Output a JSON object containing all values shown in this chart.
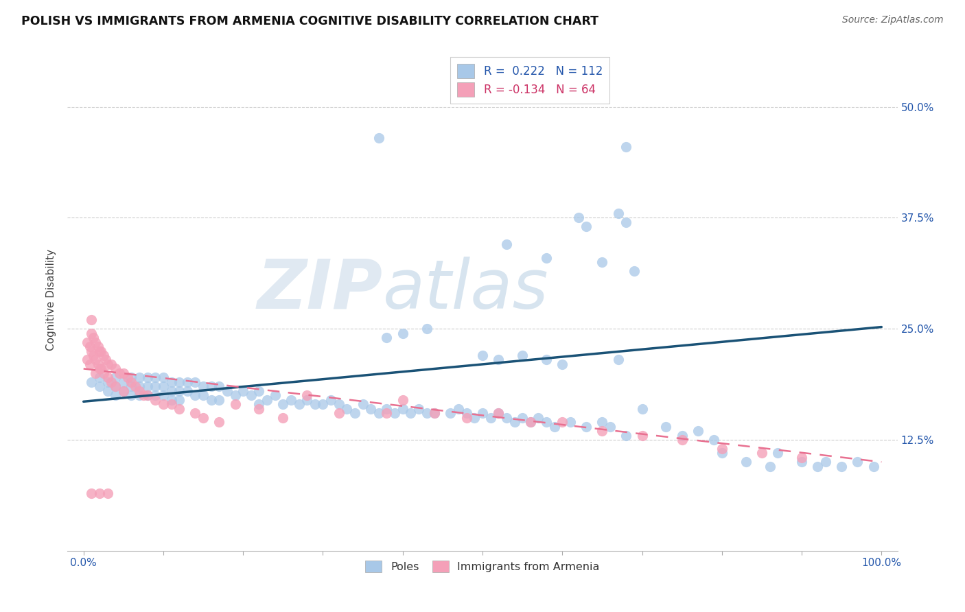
{
  "title": "POLISH VS IMMIGRANTS FROM ARMENIA COGNITIVE DISABILITY CORRELATION CHART",
  "source": "Source: ZipAtlas.com",
  "ylabel": "Cognitive Disability",
  "ytick_labels": [
    "12.5%",
    "25.0%",
    "37.5%",
    "50.0%"
  ],
  "ytick_values": [
    0.125,
    0.25,
    0.375,
    0.5
  ],
  "xlim": [
    -0.02,
    1.02
  ],
  "ylim": [
    0.0,
    0.565
  ],
  "blue_color": "#a8c8e8",
  "pink_color": "#f4a0b8",
  "blue_line_color": "#1a5276",
  "pink_line_color": "#e87090",
  "watermark_zip": "ZIP",
  "watermark_atlas": "atlas",
  "blue_line_x": [
    0.0,
    1.0
  ],
  "blue_line_y": [
    0.168,
    0.252
  ],
  "pink_line_x": [
    0.0,
    1.0
  ],
  "pink_line_y": [
    0.205,
    0.1
  ],
  "poles_x": [
    0.01,
    0.02,
    0.02,
    0.03,
    0.03,
    0.04,
    0.04,
    0.04,
    0.05,
    0.05,
    0.06,
    0.06,
    0.06,
    0.07,
    0.07,
    0.07,
    0.08,
    0.08,
    0.08,
    0.09,
    0.09,
    0.09,
    0.1,
    0.1,
    0.1,
    0.11,
    0.11,
    0.11,
    0.12,
    0.12,
    0.12,
    0.13,
    0.13,
    0.14,
    0.14,
    0.15,
    0.15,
    0.16,
    0.16,
    0.17,
    0.17,
    0.18,
    0.19,
    0.2,
    0.21,
    0.22,
    0.22,
    0.23,
    0.24,
    0.25,
    0.26,
    0.27,
    0.28,
    0.29,
    0.3,
    0.31,
    0.32,
    0.33,
    0.34,
    0.35,
    0.36,
    0.37,
    0.38,
    0.39,
    0.4,
    0.41,
    0.42,
    0.43,
    0.44,
    0.46,
    0.47,
    0.48,
    0.49,
    0.5,
    0.51,
    0.52,
    0.53,
    0.54,
    0.55,
    0.56,
    0.57,
    0.58,
    0.59,
    0.61,
    0.63,
    0.65,
    0.66,
    0.67,
    0.68,
    0.7,
    0.73,
    0.75,
    0.77,
    0.79,
    0.8,
    0.83,
    0.86,
    0.87,
    0.9,
    0.92,
    0.93,
    0.95,
    0.97,
    0.99,
    0.38,
    0.4,
    0.43,
    0.5,
    0.52,
    0.55,
    0.58,
    0.6
  ],
  "poles_y": [
    0.19,
    0.195,
    0.185,
    0.19,
    0.18,
    0.195,
    0.185,
    0.175,
    0.19,
    0.18,
    0.195,
    0.185,
    0.175,
    0.195,
    0.185,
    0.175,
    0.195,
    0.185,
    0.175,
    0.195,
    0.185,
    0.175,
    0.195,
    0.185,
    0.175,
    0.19,
    0.18,
    0.17,
    0.19,
    0.18,
    0.17,
    0.19,
    0.18,
    0.19,
    0.175,
    0.185,
    0.175,
    0.185,
    0.17,
    0.185,
    0.17,
    0.18,
    0.175,
    0.18,
    0.175,
    0.18,
    0.165,
    0.17,
    0.175,
    0.165,
    0.17,
    0.165,
    0.17,
    0.165,
    0.165,
    0.17,
    0.165,
    0.16,
    0.155,
    0.165,
    0.16,
    0.155,
    0.16,
    0.155,
    0.16,
    0.155,
    0.16,
    0.155,
    0.155,
    0.155,
    0.16,
    0.155,
    0.15,
    0.155,
    0.15,
    0.155,
    0.15,
    0.145,
    0.15,
    0.145,
    0.15,
    0.145,
    0.14,
    0.145,
    0.14,
    0.145,
    0.14,
    0.215,
    0.13,
    0.16,
    0.14,
    0.13,
    0.135,
    0.125,
    0.11,
    0.1,
    0.095,
    0.11,
    0.1,
    0.095,
    0.1,
    0.095,
    0.1,
    0.095,
    0.24,
    0.245,
    0.25,
    0.22,
    0.215,
    0.22,
    0.215,
    0.21
  ],
  "poles_outliers_x": [
    0.37,
    0.68,
    0.67,
    0.68,
    0.53,
    0.58,
    0.62,
    0.63,
    0.65,
    0.69
  ],
  "poles_outliers_y": [
    0.465,
    0.455,
    0.38,
    0.37,
    0.345,
    0.33,
    0.375,
    0.365,
    0.325,
    0.315
  ],
  "armenia_x": [
    0.005,
    0.005,
    0.008,
    0.008,
    0.01,
    0.01,
    0.01,
    0.012,
    0.012,
    0.015,
    0.015,
    0.015,
    0.018,
    0.018,
    0.02,
    0.02,
    0.022,
    0.022,
    0.025,
    0.025,
    0.028,
    0.03,
    0.03,
    0.035,
    0.035,
    0.04,
    0.04,
    0.045,
    0.05,
    0.05,
    0.055,
    0.06,
    0.065,
    0.07,
    0.075,
    0.08,
    0.09,
    0.1,
    0.11,
    0.12,
    0.14,
    0.15,
    0.17,
    0.19,
    0.22,
    0.25,
    0.28,
    0.32,
    0.38,
    0.4,
    0.44,
    0.48,
    0.52,
    0.56,
    0.6,
    0.65,
    0.7,
    0.75,
    0.8,
    0.85,
    0.9,
    0.01,
    0.02,
    0.03
  ],
  "armenia_y": [
    0.235,
    0.215,
    0.23,
    0.21,
    0.26,
    0.245,
    0.225,
    0.24,
    0.22,
    0.235,
    0.215,
    0.2,
    0.23,
    0.21,
    0.225,
    0.205,
    0.225,
    0.205,
    0.22,
    0.2,
    0.215,
    0.21,
    0.195,
    0.21,
    0.19,
    0.205,
    0.185,
    0.2,
    0.2,
    0.18,
    0.195,
    0.19,
    0.185,
    0.18,
    0.175,
    0.175,
    0.17,
    0.165,
    0.165,
    0.16,
    0.155,
    0.15,
    0.145,
    0.165,
    0.16,
    0.15,
    0.175,
    0.155,
    0.155,
    0.17,
    0.155,
    0.15,
    0.155,
    0.145,
    0.145,
    0.135,
    0.13,
    0.125,
    0.115,
    0.11,
    0.105,
    0.065,
    0.065,
    0.065
  ]
}
